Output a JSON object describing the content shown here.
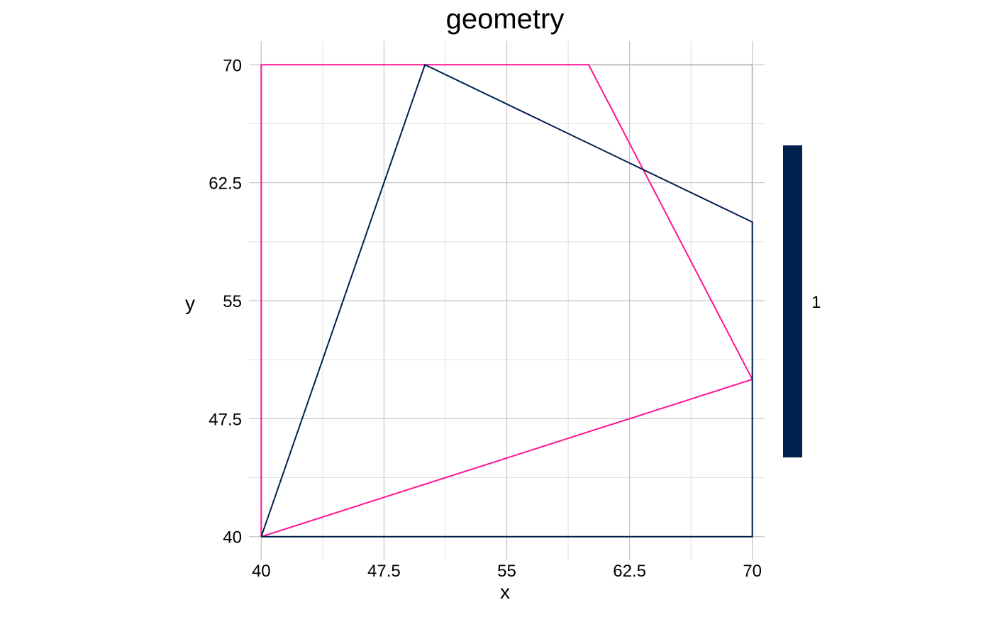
{
  "chart_data": {
    "type": "line",
    "title": "geometry",
    "xlabel": "x",
    "ylabel": "y",
    "xlim": [
      39.25,
      70.75
    ],
    "ylim": [
      38.5,
      71.5
    ],
    "x_ticks": [
      40,
      47.5,
      55,
      62.5,
      70
    ],
    "x_tick_labels": [
      "40",
      "47.5",
      "55",
      "62.5",
      "70"
    ],
    "y_ticks": [
      40,
      47.5,
      55,
      62.5,
      70
    ],
    "y_tick_labels": [
      "40",
      "47.5",
      "55",
      "62.5",
      "70"
    ],
    "grid": true,
    "legend": {
      "position": "right",
      "label": "1",
      "color": "#00204D"
    },
    "series": [
      {
        "color": "#FF1493",
        "points": [
          [
            40,
            40
          ],
          [
            40,
            70
          ],
          [
            60,
            70
          ],
          [
            70,
            50
          ],
          [
            40,
            40
          ]
        ]
      },
      {
        "color": "#00204D",
        "points": [
          [
            40,
            40
          ],
          [
            50,
            70
          ],
          [
            70,
            60
          ],
          [
            70,
            40
          ],
          [
            40,
            40
          ]
        ]
      }
    ],
    "background_frame": {
      "color": "#BEBEBE",
      "points": [
        [
          70,
          40
        ],
        [
          70,
          70
        ],
        [
          60,
          70
        ]
      ]
    }
  }
}
